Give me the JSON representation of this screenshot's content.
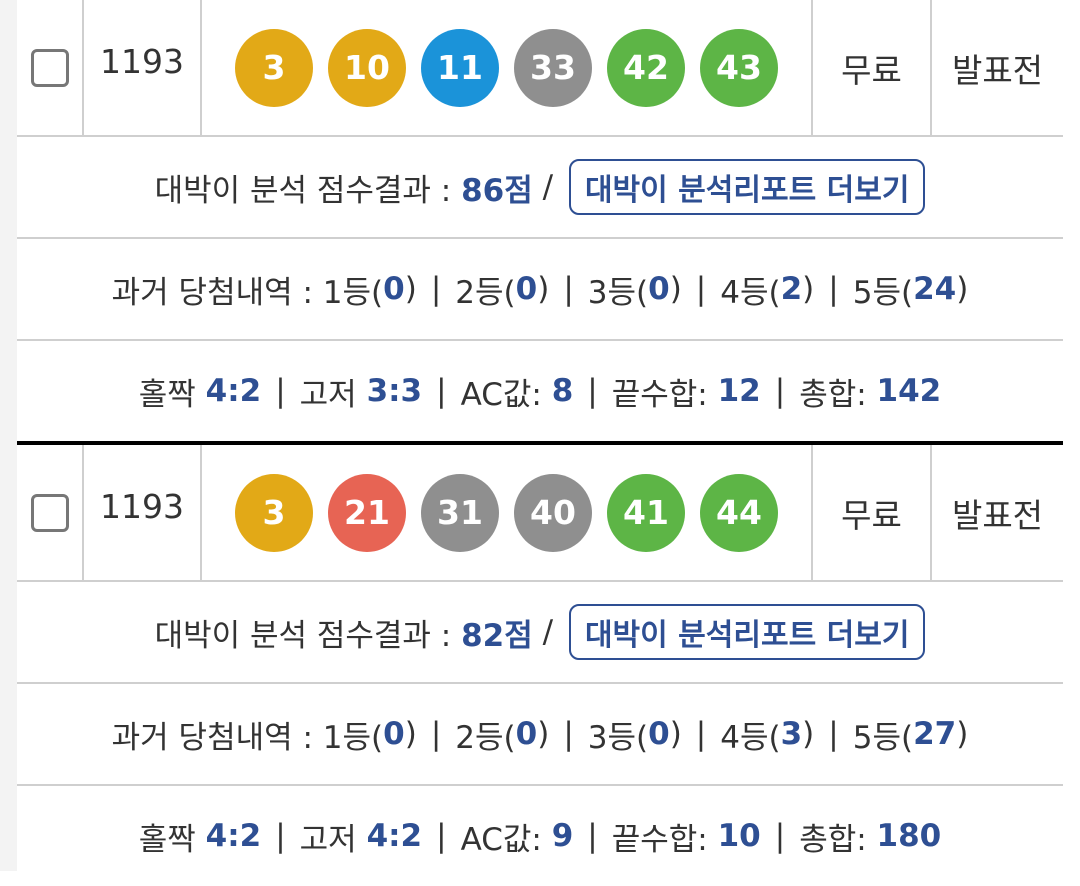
{
  "labels": {
    "score": "대박이 분석 점수결과 : ",
    "slash": " / ",
    "report": "대박이 분석리포트 더보기",
    "history": "과거 당첨내역 : ",
    "sep": "|",
    "oddeven": "홀짝 ",
    "highlow": "고저 ",
    "ac": "AC값: ",
    "endsum": "끝수합: ",
    "total": "총합: ",
    "ranks": [
      "1등(",
      "2등(",
      "3등(",
      "4등(",
      "5등("
    ],
    "close": ")"
  },
  "colors": {
    "yellow": "#e2a917",
    "blue": "#1b93d9",
    "gray": "#8f8f8f",
    "green": "#5db546",
    "red": "#e76454",
    "accent": "#2e4f93"
  },
  "entries": [
    {
      "round": "1193",
      "balls": [
        {
          "n": "3",
          "c": "#e2a917"
        },
        {
          "n": "10",
          "c": "#e2a917"
        },
        {
          "n": "11",
          "c": "#1b93d9"
        },
        {
          "n": "33",
          "c": "#8f8f8f"
        },
        {
          "n": "42",
          "c": "#5db546"
        },
        {
          "n": "43",
          "c": "#5db546"
        }
      ],
      "price": "무료",
      "status": "발표전",
      "score": "86점",
      "history": [
        "0",
        "0",
        "0",
        "2",
        "24"
      ],
      "oddeven": "4:2",
      "highlow": "3:3",
      "ac": "8",
      "endsum": "12",
      "total": "142"
    },
    {
      "round": "1193",
      "balls": [
        {
          "n": "3",
          "c": "#e2a917"
        },
        {
          "n": "21",
          "c": "#e76454"
        },
        {
          "n": "31",
          "c": "#8f8f8f"
        },
        {
          "n": "40",
          "c": "#8f8f8f"
        },
        {
          "n": "41",
          "c": "#5db546"
        },
        {
          "n": "44",
          "c": "#5db546"
        }
      ],
      "price": "무료",
      "status": "발표전",
      "score": "82점",
      "history": [
        "0",
        "0",
        "0",
        "3",
        "27"
      ],
      "oddeven": "4:2",
      "highlow": "4:2",
      "ac": "9",
      "endsum": "10",
      "total": "180"
    }
  ]
}
